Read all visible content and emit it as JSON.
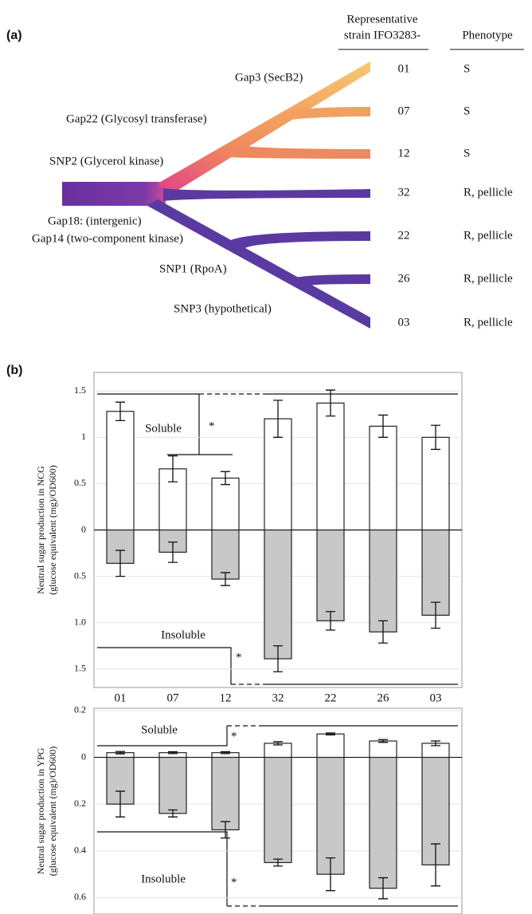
{
  "panel_a": {
    "label": "(a)",
    "header": {
      "strain": [
        "Representative",
        "strain IFO3283-"
      ],
      "phenotype": "Phenotype"
    },
    "branch_labels": [
      "Gap3 (SecB2)",
      "Gap22 (Glycosyl transferase)",
      "SNP2 (Glycerol kinase)",
      "Gap18: (intergenic)",
      "Gap14 (two-component kinase)",
      "SNP1 (RpoA)",
      "SNP3 (hypothetical)"
    ],
    "leaves": [
      {
        "strain": "01",
        "phenotype": "S"
      },
      {
        "strain": "07",
        "phenotype": "S"
      },
      {
        "strain": "12",
        "phenotype": "S"
      },
      {
        "strain": "32",
        "phenotype": "R, pellicle"
      },
      {
        "strain": "22",
        "phenotype": "R, pellicle"
      },
      {
        "strain": "26",
        "phenotype": "R, pellicle"
      },
      {
        "strain": "03",
        "phenotype": "R, pellicle"
      }
    ]
  },
  "panel_b": {
    "label": "(b)"
  },
  "chart_data": [
    {
      "type": "bar",
      "y_label": [
        "Neutral sugar production in NCG",
        "(glucose equivalent (mg)/OD600)"
      ],
      "categories": [
        "01",
        "07",
        "12",
        "32",
        "22",
        "26",
        "03"
      ],
      "series": [
        {
          "name": "Soluble",
          "color": "#ffffff",
          "values": [
            1.28,
            0.66,
            0.56,
            1.2,
            1.37,
            1.12,
            1.0
          ],
          "errors": [
            0.1,
            0.14,
            0.07,
            0.2,
            0.14,
            0.12,
            0.13
          ]
        },
        {
          "name": "Insoluble",
          "color": "#c8c8c8",
          "values": [
            -0.36,
            -0.24,
            -0.53,
            -1.39,
            -0.98,
            -1.1,
            -0.92
          ],
          "errors": [
            0.14,
            0.11,
            0.07,
            0.14,
            0.1,
            0.12,
            0.14
          ]
        }
      ],
      "ylim": [
        -1.7,
        1.7
      ],
      "yticks": [
        {
          "value": -1.5,
          "label": "1.5"
        },
        {
          "value": -1.0,
          "label": "1.0"
        },
        {
          "value": -0.5,
          "label": "0.5"
        },
        0.0,
        0.5,
        1.0,
        1.5
      ],
      "grid": true,
      "annotations": [
        "*",
        "*"
      ]
    },
    {
      "type": "bar",
      "y_label": [
        "Neutral sugar production in YPG",
        "(glucose equivalent (mg)/OD600)"
      ],
      "categories": [
        null,
        null,
        null,
        null,
        null,
        null,
        null
      ],
      "series": [
        {
          "name": "Soluble",
          "color": "#ffffff",
          "values": [
            0.02,
            0.02,
            0.02,
            0.06,
            0.1,
            0.07,
            0.06
          ],
          "errors": [
            0.005,
            0.004,
            0.004,
            0.007,
            0.004,
            0.006,
            0.01
          ]
        },
        {
          "name": "Insoluble",
          "color": "#c8c8c8",
          "values": [
            -0.2,
            -0.24,
            -0.31,
            -0.45,
            -0.5,
            -0.56,
            -0.46
          ],
          "errors": [
            0.055,
            0.015,
            0.035,
            0.015,
            0.07,
            0.045,
            0.09
          ]
        }
      ],
      "ylim": [
        -0.67,
        0.21
      ],
      "yticks": [
        {
          "value": -0.6,
          "label": "0.6"
        },
        {
          "value": -0.4,
          "label": "0.4"
        },
        {
          "value": -0.2,
          "label": "0.2"
        },
        0.0,
        0.2
      ],
      "grid": true,
      "annotations": [
        "*",
        "*"
      ]
    }
  ]
}
